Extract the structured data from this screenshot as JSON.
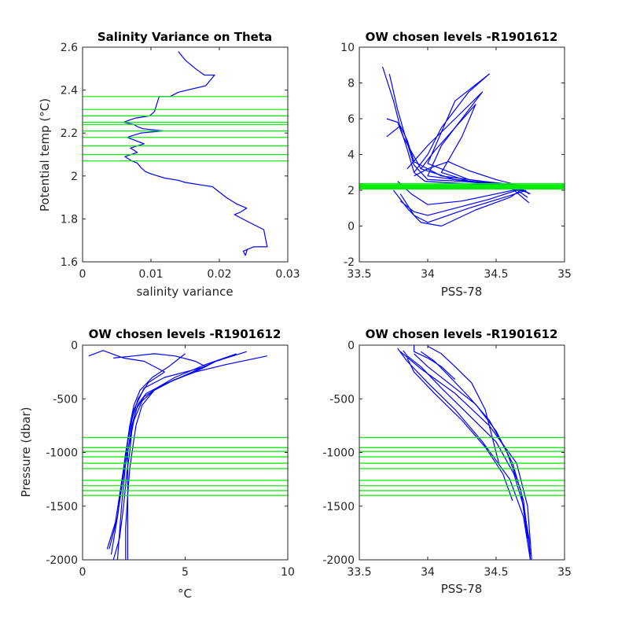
{
  "colors": {
    "profile": "#0000ff",
    "level": "#00ee00",
    "axis": "#262626",
    "background": "#ffffff"
  },
  "chart_data": [
    {
      "type": "line",
      "title": "Salinity Variance on Theta",
      "xlabel": "salinity variance",
      "ylabel": "Potential temp (°C)",
      "xlim": [
        0,
        0.03
      ],
      "ylim": [
        1.6,
        2.6
      ],
      "xticks": [
        "0",
        "0.01",
        "0.02",
        "0.03"
      ],
      "yticks": [
        "1.6",
        "1.8",
        "2",
        "2.2",
        "2.4",
        "2.6"
      ],
      "series": [
        {
          "x": [
            0.014,
            0.015,
            0.0165,
            0.0178,
            0.0193,
            0.0185,
            0.018,
            0.014,
            0.0128,
            0.0112,
            0.0108,
            0.0105,
            0.0098,
            0.0078,
            0.0068,
            0.006,
            0.0075,
            0.008,
            0.0088,
            0.0118,
            0.0085,
            0.0075,
            0.0065,
            0.009,
            0.007,
            0.008,
            0.0062,
            0.0072,
            0.008,
            0.0085,
            0.0092,
            0.01,
            0.011,
            0.012,
            0.014,
            0.015,
            0.019,
            0.021,
            0.0225,
            0.024,
            0.023,
            0.0222,
            0.024,
            0.0265,
            0.0268,
            0.027,
            0.025,
            0.0235,
            0.0238,
            0.0241
          ],
          "y": [
            2.58,
            2.54,
            2.5,
            2.47,
            2.47,
            2.44,
            2.42,
            2.39,
            2.37,
            2.37,
            2.33,
            2.3,
            2.28,
            2.27,
            2.26,
            2.25,
            2.24,
            2.23,
            2.22,
            2.21,
            2.2,
            2.19,
            2.18,
            2.15,
            2.13,
            2.11,
            2.09,
            2.07,
            2.06,
            2.04,
            2.02,
            2.01,
            2.0,
            1.99,
            1.98,
            1.97,
            1.95,
            1.9,
            1.87,
            1.85,
            1.83,
            1.82,
            1.79,
            1.75,
            1.7,
            1.67,
            1.67,
            1.65,
            1.63,
            1.66
          ]
        }
      ],
      "hlines": [
        2.07,
        2.1,
        2.14,
        2.18,
        2.21,
        2.24,
        2.25,
        2.28,
        2.31,
        2.37
      ]
    },
    {
      "type": "line",
      "title": "OW chosen levels -R1901612",
      "xlabel": "PSS-78",
      "ylabel": "",
      "xlim": [
        33.5,
        35
      ],
      "ylim": [
        -2,
        10
      ],
      "xticks": [
        "33.5",
        "34",
        "34.5",
        "35"
      ],
      "yticks": [
        "-2",
        "0",
        "2",
        "4",
        "6",
        "8",
        "10"
      ],
      "series": [
        {
          "x": [
            33.67,
            33.75,
            33.8,
            33.85,
            33.9,
            33.98,
            34.2,
            34.5,
            34.7,
            34.75
          ],
          "y": [
            8.9,
            7.0,
            5.5,
            4.3,
            3.0,
            2.5,
            2.4,
            2.3,
            2.0,
            1.8
          ]
        },
        {
          "x": [
            33.72,
            33.78,
            33.84,
            33.9,
            34.0,
            34.25,
            34.55,
            34.72
          ],
          "y": [
            8.5,
            6.5,
            4.9,
            3.4,
            2.6,
            2.5,
            2.3,
            1.9
          ]
        },
        {
          "x": [
            33.9,
            34.0,
            34.1,
            34.3,
            34.45,
            34.2,
            34.0,
            34.3,
            34.6,
            34.73
          ],
          "y": [
            3.0,
            4.0,
            5.5,
            7.5,
            8.5,
            7.0,
            3.5,
            2.6,
            2.3,
            1.6
          ]
        },
        {
          "x": [
            33.85,
            34.0,
            34.2,
            34.4,
            34.3,
            34.1,
            34.0,
            34.3,
            34.6,
            34.74
          ],
          "y": [
            3.2,
            4.5,
            6.0,
            7.5,
            6.5,
            4.5,
            2.8,
            2.5,
            2.2,
            1.3
          ]
        },
        {
          "x": [
            33.7,
            33.8,
            33.85,
            33.9,
            34.1,
            34.4,
            34.65,
            34.74
          ],
          "y": [
            5.0,
            5.6,
            4.8,
            3.6,
            2.8,
            2.5,
            2.3,
            1.8
          ]
        },
        {
          "x": [
            33.8,
            33.85,
            33.9,
            34.0,
            34.3,
            34.6,
            34.72
          ],
          "y": [
            1.8,
            1.2,
            0.6,
            0.2,
            1.0,
            1.7,
            2.0
          ]
        },
        {
          "x": [
            33.75,
            33.85,
            33.95,
            34.1,
            34.35,
            34.6,
            34.7
          ],
          "y": [
            2.0,
            1.0,
            0.2,
            0.0,
            0.9,
            1.6,
            2.1
          ]
        },
        {
          "x": [
            33.8,
            33.9,
            34.0,
            34.2,
            34.45,
            34.65
          ],
          "y": [
            1.4,
            0.8,
            0.6,
            1.0,
            1.5,
            2.0
          ]
        },
        {
          "x": [
            33.7,
            33.78,
            33.82,
            33.95,
            34.2,
            34.45,
            34.7
          ],
          "y": [
            6.0,
            5.8,
            5.0,
            3.2,
            2.6,
            2.4,
            2.1
          ]
        },
        {
          "x": [
            33.95,
            34.05,
            34.2,
            34.35,
            34.25,
            34.1,
            34.3,
            34.62
          ],
          "y": [
            3.2,
            4.2,
            5.5,
            6.8,
            5.0,
            3.0,
            2.5,
            2.2
          ]
        },
        {
          "x": [
            33.9,
            34.0,
            34.15,
            34.3,
            34.5,
            34.7
          ],
          "y": [
            2.8,
            3.2,
            3.6,
            3.1,
            2.6,
            2.2
          ]
        },
        {
          "x": [
            33.78,
            33.88,
            34.0,
            34.25,
            34.5,
            34.68
          ],
          "y": [
            2.5,
            1.8,
            1.2,
            1.4,
            1.8,
            2.1
          ]
        }
      ],
      "hlines": [
        2.07,
        2.1,
        2.14,
        2.18,
        2.21,
        2.24,
        2.25,
        2.28,
        2.31,
        2.37
      ]
    },
    {
      "type": "line",
      "title": "OW chosen levels -R1901612",
      "xlabel": "°C",
      "ylabel": "Pressure (dbar)",
      "xlim": [
        0,
        10
      ],
      "ylim": [
        -2000,
        0
      ],
      "xticks": [
        "0",
        "5",
        "10"
      ],
      "yticks": [
        "-2000",
        "-1500",
        "-1000",
        "-500",
        "0"
      ],
      "series": [
        {
          "x": [
            8.0,
            6.5,
            5.0,
            3.8,
            3.0,
            2.6,
            2.4,
            2.3,
            2.15,
            2.0,
            1.8,
            1.5
          ],
          "y": [
            -60,
            -150,
            -280,
            -380,
            -480,
            -600,
            -800,
            -1000,
            -1200,
            -1500,
            -1800,
            -2000
          ]
        },
        {
          "x": [
            9.0,
            7.0,
            5.5,
            4.5,
            3.5,
            2.9,
            2.6,
            2.45,
            2.3,
            2.2,
            2.1,
            2.1
          ],
          "y": [
            -100,
            -180,
            -250,
            -320,
            -420,
            -560,
            -750,
            -950,
            -1150,
            -1400,
            -1700,
            -2000
          ]
        },
        {
          "x": [
            5.0,
            4.2,
            3.4,
            2.8,
            2.5,
            2.3,
            2.15,
            2.0,
            1.8,
            1.6,
            1.2
          ],
          "y": [
            -80,
            -200,
            -300,
            -420,
            -560,
            -750,
            -950,
            -1150,
            -1400,
            -1650,
            -1900
          ]
        },
        {
          "x": [
            0.3,
            1.0,
            2.0,
            3.0,
            4.0,
            3.2,
            2.7,
            2.4,
            2.2,
            2.05,
            1.9,
            1.7
          ],
          "y": [
            -100,
            -50,
            -120,
            -150,
            -250,
            -350,
            -500,
            -700,
            -900,
            -1200,
            -1500,
            -2000
          ]
        },
        {
          "x": [
            1.5,
            2.5,
            3.5,
            4.5,
            5.5,
            6.0,
            4.0,
            3.0,
            2.5,
            2.3,
            2.1,
            1.9,
            1.7,
            1.3
          ],
          "y": [
            -120,
            -100,
            -80,
            -100,
            -150,
            -200,
            -300,
            -400,
            -600,
            -800,
            -1000,
            -1300,
            -1600,
            -1900
          ]
        },
        {
          "x": [
            6.5,
            5.8,
            4.8,
            3.9,
            3.1,
            2.7,
            2.4,
            2.2,
            2.2,
            2.2
          ],
          "y": [
            -150,
            -220,
            -300,
            -370,
            -450,
            -550,
            -750,
            -1000,
            -1400,
            -2000
          ]
        },
        {
          "x": [
            7.5,
            6.0,
            4.5,
            3.6,
            2.9,
            2.5,
            2.3,
            2.0,
            1.7,
            1.4
          ],
          "y": [
            -80,
            -180,
            -300,
            -400,
            -520,
            -700,
            -900,
            -1200,
            -1600,
            -1950
          ]
        }
      ],
      "hlines": [
        -860,
        -955,
        -990,
        -1040,
        -1100,
        -1150,
        -1260,
        -1310,
        -1355,
        -1400
      ]
    },
    {
      "type": "line",
      "title": "OW chosen levels -R1901612",
      "xlabel": "PSS-78",
      "ylabel": "",
      "xlim": [
        33.5,
        35
      ],
      "ylim": [
        -2000,
        0
      ],
      "xticks": [
        "33.5",
        "34",
        "34.5",
        "35"
      ],
      "yticks": [
        "-2000",
        "-1500",
        "-1000",
        "-500",
        "0"
      ],
      "series": [
        {
          "x": [
            33.82,
            33.85,
            33.95,
            34.1,
            34.3,
            34.5,
            34.63,
            34.7,
            34.74,
            34.75
          ],
          "y": [
            -50,
            -100,
            -200,
            -400,
            -650,
            -900,
            -1200,
            -1500,
            -1800,
            -2000
          ]
        },
        {
          "x": [
            33.78,
            33.85,
            34.0,
            34.2,
            34.4,
            34.6,
            34.7,
            34.75
          ],
          "y": [
            -30,
            -150,
            -350,
            -600,
            -900,
            -1250,
            -1600,
            -2000
          ]
        },
        {
          "x": [
            33.9,
            34.0,
            34.15,
            34.35,
            34.5,
            34.62,
            34.7,
            34.75
          ],
          "y": [
            -80,
            -200,
            -350,
            -550,
            -800,
            -1100,
            -1450,
            -1950
          ]
        },
        {
          "x": [
            33.95,
            34.05,
            34.15,
            34.3,
            34.45,
            34.58,
            34.68,
            34.73
          ],
          "y": [
            -60,
            -150,
            -280,
            -480,
            -700,
            -1000,
            -1350,
            -1800
          ]
        },
        {
          "x": [
            34.0,
            34.1,
            34.2,
            34.32,
            34.42,
            34.48,
            34.52
          ],
          "y": [
            -10,
            -80,
            -200,
            -350,
            -600,
            -900,
            -1100
          ]
        },
        {
          "x": [
            33.85,
            33.9,
            34.05,
            34.25,
            34.42,
            34.55,
            34.62
          ],
          "y": [
            -120,
            -250,
            -450,
            -700,
            -950,
            -1200,
            -1450
          ]
        },
        {
          "x": [
            33.9,
            33.9,
            34.0,
            34.1,
            34.2
          ],
          "y": [
            0,
            -60,
            -120,
            -200,
            -320
          ]
        },
        {
          "x": [
            33.8,
            33.95,
            34.2,
            34.45,
            34.65,
            34.73,
            34.76
          ],
          "y": [
            -60,
            -220,
            -450,
            -750,
            -1100,
            -1500,
            -2000
          ]
        }
      ],
      "hlines": [
        -860,
        -955,
        -990,
        -1040,
        -1100,
        -1150,
        -1260,
        -1310,
        -1355,
        -1400
      ]
    }
  ]
}
